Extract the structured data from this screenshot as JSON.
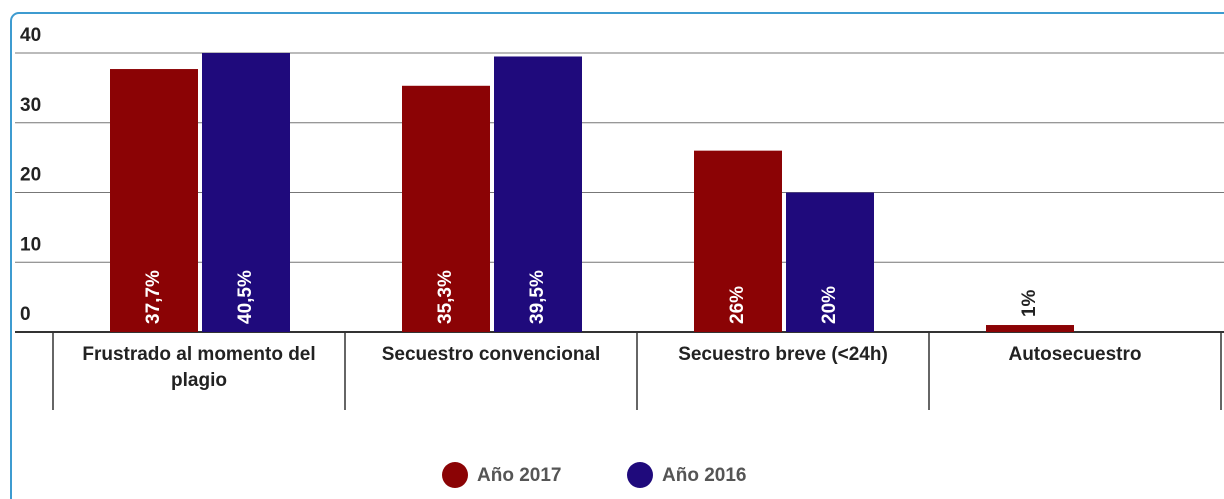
{
  "chart_data": {
    "type": "bar",
    "categories": [
      "Frustrado al momento del plagio",
      "Secuestro convencional",
      "Secuestro breve (<24h)",
      "Autosecuestro"
    ],
    "series": [
      {
        "name": "Año 2017",
        "color": "#8b0305",
        "values": [
          37.7,
          35.3,
          26,
          1
        ],
        "value_labels": [
          "37,7%",
          "35,3%",
          "26%",
          "1%"
        ]
      },
      {
        "name": "Año 2016",
        "color": "#1f0a7c",
        "values": [
          40.5,
          39.5,
          20,
          null
        ],
        "value_labels": [
          "40,5%",
          "39,5%",
          "20%",
          null
        ]
      }
    ],
    "ylim": [
      0,
      40
    ],
    "yticks": [
      0,
      10,
      20,
      30,
      40
    ],
    "grid": true,
    "legend": "bottom"
  }
}
